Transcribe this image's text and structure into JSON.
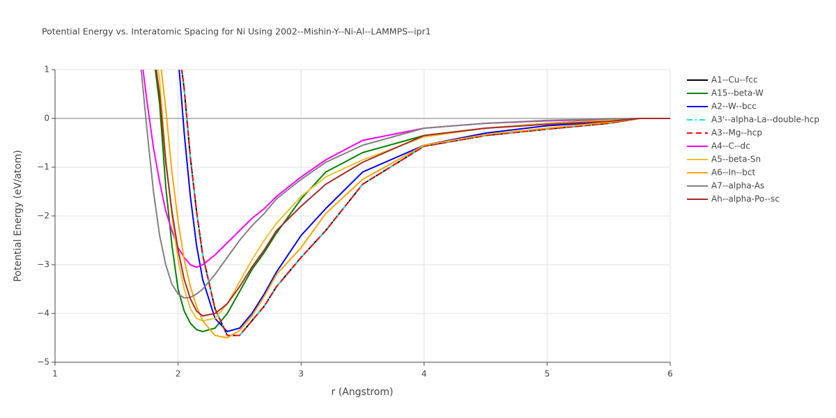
{
  "chart_data": {
    "type": "line",
    "title": "Potential Energy vs. Interatomic Spacing for Ni Using 2002--Mishin-Y--Ni-Al--LAMMPS--ipr1",
    "x_label": "r (Angstrom)",
    "y_label": "Potential Energy (eV/atom)",
    "xlim": [
      1,
      6
    ],
    "xticks": [
      1,
      2,
      3,
      4,
      5,
      6
    ],
    "ylim": [
      -5,
      1
    ],
    "yticks": [
      {
        "value": -5,
        "label": "−5"
      },
      {
        "value": -4,
        "label": "−4"
      },
      {
        "value": -3,
        "label": "−3"
      },
      {
        "value": -2,
        "label": "−2"
      },
      {
        "value": -1,
        "label": "−1"
      },
      0,
      1
    ],
    "grid": true,
    "x": [
      1.7,
      1.75,
      1.8,
      1.85,
      1.9,
      1.95,
      2.0,
      2.05,
      2.1,
      2.15,
      2.2,
      2.3,
      2.4,
      2.5,
      2.6,
      2.7,
      2.8,
      3.0,
      3.2,
      3.5,
      4.0,
      4.5,
      5.0,
      5.5,
      5.75,
      6.0
    ],
    "series": [
      {
        "name": "A1--Cu--fcc",
        "color": "#000000",
        "dash": "solid",
        "values": [
          null,
          null,
          null,
          null,
          null,
          null,
          1.6,
          0.6,
          -0.8,
          -1.9,
          -2.8,
          -3.9,
          -4.45,
          -4.45,
          -4.15,
          -3.85,
          -3.45,
          -2.85,
          -2.3,
          -1.35,
          -0.57,
          -0.35,
          -0.22,
          -0.1,
          0,
          0
        ]
      },
      {
        "name": "A15--beta-W",
        "color": "#008000",
        "dash": "solid",
        "values": [
          null,
          null,
          1.3,
          0.3,
          -1.4,
          -2.6,
          -3.5,
          -3.95,
          -4.2,
          -4.33,
          -4.37,
          -4.3,
          -4.0,
          -3.55,
          -3.1,
          -2.75,
          -2.35,
          -1.65,
          -1.1,
          -0.7,
          -0.35,
          -0.2,
          -0.1,
          -0.03,
          0,
          0
        ]
      },
      {
        "name": "A2--W--bcc",
        "color": "#0000ff",
        "dash": "solid",
        "values": [
          null,
          null,
          null,
          null,
          null,
          null,
          1.3,
          -0.3,
          -1.6,
          -2.6,
          -3.3,
          -4.1,
          -4.37,
          -4.3,
          -4.0,
          -3.6,
          -3.15,
          -2.4,
          -1.85,
          -1.1,
          -0.55,
          -0.3,
          -0.15,
          -0.07,
          0,
          0
        ]
      },
      {
        "name": "A3'--alpha-La--double-hcp",
        "color": "#00e5ee",
        "dash": "dashdot",
        "values": [
          null,
          null,
          null,
          null,
          null,
          null,
          1.6,
          0.6,
          -0.8,
          -1.9,
          -2.8,
          -3.9,
          -4.45,
          -4.45,
          -4.15,
          -3.85,
          -3.45,
          -2.85,
          -2.3,
          -1.35,
          -0.57,
          -0.35,
          -0.22,
          -0.1,
          0,
          0
        ]
      },
      {
        "name": "A3--Mg--hcp",
        "color": "#ff0000",
        "dash": "dash",
        "values": [
          null,
          null,
          null,
          null,
          null,
          null,
          1.6,
          0.6,
          -0.8,
          -1.9,
          -2.8,
          -3.9,
          -4.45,
          -4.45,
          -4.15,
          -3.85,
          -3.45,
          -2.85,
          -2.3,
          -1.35,
          -0.57,
          -0.35,
          -0.22,
          -0.1,
          0,
          0
        ]
      },
      {
        "name": "A4--C--dc",
        "color": "#ff00ff",
        "dash": "solid",
        "values": [
          1.3,
          0.3,
          -0.6,
          -1.3,
          -1.9,
          -2.3,
          -2.65,
          -2.85,
          -3.0,
          -3.05,
          -3.0,
          -2.8,
          -2.55,
          -2.3,
          -2.05,
          -1.85,
          -1.6,
          -1.2,
          -0.85,
          -0.45,
          -0.2,
          -0.1,
          -0.05,
          -0.02,
          0,
          0
        ]
      },
      {
        "name": "A5--beta-Sn",
        "color": "#e6c229",
        "dash": "solid",
        "values": [
          null,
          null,
          1.6,
          0.8,
          -0.8,
          -2.0,
          -2.9,
          -3.5,
          -3.9,
          -4.1,
          -4.15,
          -4.1,
          -3.8,
          -3.35,
          -2.9,
          -2.5,
          -2.15,
          -1.6,
          -1.2,
          -0.85,
          -0.38,
          -0.2,
          -0.1,
          -0.04,
          0,
          0
        ]
      },
      {
        "name": "A6--In--bct",
        "color": "#ffa500",
        "dash": "solid",
        "values": [
          null,
          null,
          null,
          1.3,
          0.2,
          -1.1,
          -2.1,
          -2.9,
          -3.45,
          -3.85,
          -4.15,
          -4.45,
          -4.5,
          -4.35,
          -4.05,
          -3.65,
          -3.2,
          -2.65,
          -1.95,
          -1.25,
          -0.55,
          -0.33,
          -0.2,
          -0.08,
          0,
          0
        ]
      },
      {
        "name": "A7--alpha-As",
        "color": "#808080",
        "dash": "solid",
        "values": [
          1.0,
          -0.3,
          -1.5,
          -2.4,
          -3.0,
          -3.4,
          -3.6,
          -3.68,
          -3.67,
          -3.6,
          -3.5,
          -3.2,
          -2.85,
          -2.5,
          -2.2,
          -1.95,
          -1.65,
          -1.25,
          -0.9,
          -0.55,
          -0.2,
          -0.1,
          -0.04,
          -0.01,
          0,
          0
        ]
      },
      {
        "name": "Ah--alpha-Po--sc",
        "color": "#a52a2a",
        "dash": "solid",
        "values": [
          null,
          null,
          1.4,
          0.5,
          -0.9,
          -1.9,
          -2.7,
          -3.3,
          -3.7,
          -3.95,
          -4.05,
          -4.0,
          -3.8,
          -3.45,
          -3.05,
          -2.7,
          -2.3,
          -1.8,
          -1.35,
          -0.9,
          -0.35,
          -0.2,
          -0.12,
          -0.06,
          0,
          0
        ]
      }
    ]
  }
}
